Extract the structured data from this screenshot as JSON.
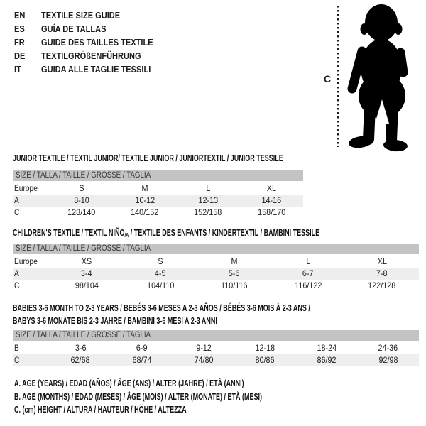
{
  "colors": {
    "band_bg": "#c3c3c3",
    "shaded_row_bg": "#eeeeee",
    "text": "#1c1c1c",
    "silhouette": "#000000"
  },
  "languages": [
    {
      "code": "EN",
      "label": "TEXTILE SIZE GUIDE"
    },
    {
      "code": "ES",
      "label": "GUÍA DE TALLAS"
    },
    {
      "code": "FR",
      "label": "GUIDE DES TAILLES TEXTILE"
    },
    {
      "code": "DE",
      "label": "TEXTILGRÖßENFÜHRUNG"
    },
    {
      "code": "IT",
      "label": "GUIDA ALLE TAGLIE TESSILI"
    }
  ],
  "figure": {
    "icon": "baby-silhouette",
    "height_label": "C"
  },
  "tables": [
    {
      "title_lines": [
        [
          {
            "text": "JUNIOR TEXTILE / TEXTIL JUNIOR/ TEXTILE JUNIOR / JUNIORTEXTIL / JUNIOR TESSILE"
          }
        ]
      ],
      "size_header": "SIZE / TALLA / TAILLE / GRÖSSE / TAGLIA",
      "rows": [
        {
          "label": "Europe",
          "values": [
            "S",
            "M",
            "L",
            "XL"
          ],
          "shaded": false
        },
        {
          "label": "A",
          "values": [
            "8-10",
            "10-12",
            "12-13",
            "14-16"
          ],
          "shaded": true
        },
        {
          "label": "C",
          "values": [
            "128/140",
            "140/152",
            "152/158",
            "158/170"
          ],
          "shaded": false
        }
      ]
    },
    {
      "title_lines": [
        [
          {
            "text": "CHILDREN'S TEXTILE / TEXTIL NIÑO"
          },
          {
            "text": "/A",
            "sub": true
          },
          {
            "text": " / TEXTILE DES ENFANTS / KINDERTEXTIL / BAMBINI TESSILE"
          }
        ]
      ],
      "size_header": "SIZE / TALLA / TAILLE / GRÖSSE / TAGLIA",
      "rows": [
        {
          "label": "Europe",
          "values": [
            "XS",
            "S",
            "M",
            "L",
            "XL"
          ],
          "shaded": false
        },
        {
          "label": "A",
          "values": [
            "3-4",
            "4-5",
            "5-6",
            "6-7",
            "7-8"
          ],
          "shaded": true
        },
        {
          "label": "C",
          "values": [
            "98/104",
            "104/110",
            "110/116",
            "116/122",
            "122/128"
          ],
          "shaded": false
        }
      ]
    },
    {
      "title_lines": [
        [
          {
            "text": "BABIES 3-6 MONTH TO 2-3 YEARS / BEBÉS 3-6 MESES A 2-3 AÑOS / BÉBÉS 3-6 MOIS À 2-3 ANS /"
          }
        ],
        [
          {
            "text": "BABYS 3-6 MONATE BIS 2-3 JAHRE / BAMBINI 3-6 MESI A 2-3 ANNI"
          }
        ]
      ],
      "size_header": "SIZE / TALLA / TAILLE / GRÖSSE / TAGLIA",
      "rows": [
        {
          "label": "B",
          "values": [
            "3-6",
            "6-9",
            "9-12",
            "12-18",
            "18-24",
            "24-36"
          ],
          "shaded": false
        },
        {
          "label": "C",
          "values": [
            "62/68",
            "68/74",
            "74/80",
            "80/86",
            "86/92",
            "92/98"
          ],
          "shaded": true
        }
      ]
    }
  ],
  "notes": [
    "A. AGE (YEARS) / EDAD (AÑOS) / ÂGE (ANS) / ALTER (JAHRE) / ETÀ (ANNI)",
    "B. AGE (MONTHS) / EDAD (MESES) / ÂGE (MOIS) / ALTER (MONATE) / ETÀ (MESI)",
    "C. (cm) HEIGHT / ALTURA / HAUTEUR / HÖHE / ALTEZZA"
  ]
}
